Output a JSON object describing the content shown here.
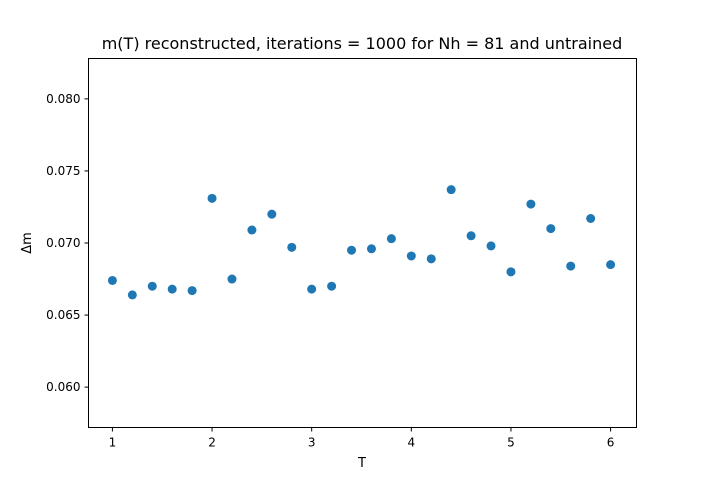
{
  "chart_data": {
    "type": "scatter",
    "title": "m(T) reconstructed, iterations = 1000 for Nh = 81 and untrained",
    "xlabel": "T",
    "ylabel": "Δm",
    "xlim": [
      0.76,
      6.26
    ],
    "ylim": [
      0.0572,
      0.0828
    ],
    "xticks": [
      1,
      2,
      3,
      4,
      5,
      6
    ],
    "xtick_labels": [
      "1",
      "2",
      "3",
      "4",
      "5",
      "6"
    ],
    "yticks": [
      0.06,
      0.065,
      0.07,
      0.075,
      0.08
    ],
    "ytick_labels": [
      "0.060",
      "0.065",
      "0.070",
      "0.075",
      "0.080"
    ],
    "grid": false,
    "marker_color": "#1f77b4",
    "series": [
      {
        "x": [
          1.0,
          1.2,
          1.4,
          1.6,
          1.8,
          2.0,
          2.2,
          2.4,
          2.6,
          2.8,
          3.0,
          3.2,
          3.4,
          3.6,
          3.8,
          4.0,
          4.2,
          4.4,
          4.6,
          4.8,
          5.0,
          5.2,
          5.4,
          5.6,
          5.8,
          6.0
        ],
        "y": [
          0.0674,
          0.0664,
          0.067,
          0.0668,
          0.0667,
          0.0731,
          0.0675,
          0.0709,
          0.072,
          0.0697,
          0.0668,
          0.067,
          0.0695,
          0.0696,
          0.0703,
          0.0691,
          0.0689,
          0.0737,
          0.0705,
          0.0698,
          0.068,
          0.0727,
          0.071,
          0.0684,
          0.0717,
          0.0685
        ]
      }
    ]
  }
}
